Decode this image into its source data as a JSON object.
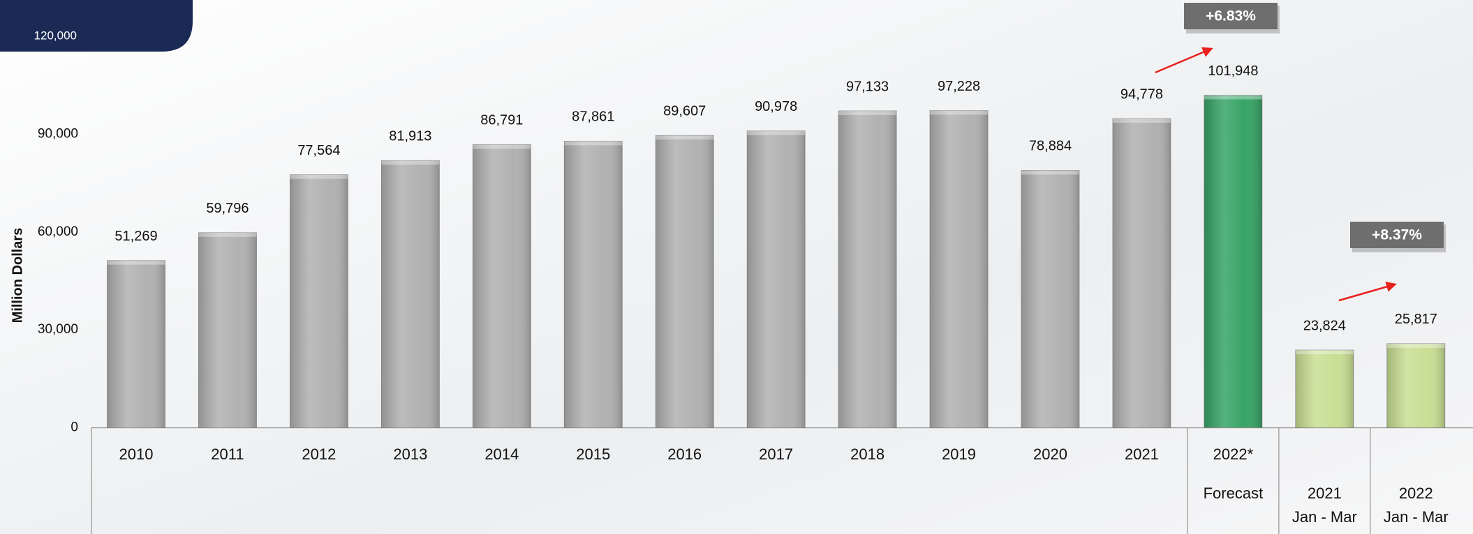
{
  "chart_data": {
    "type": "bar",
    "y_axis_label": "Million Dollars",
    "categories": [
      "2010",
      "2011",
      "2012",
      "2013",
      "2014",
      "2015",
      "2016",
      "2017",
      "2018",
      "2019",
      "2020",
      "2021",
      "2022*",
      "2021",
      "2022"
    ],
    "subcategories": [
      null,
      null,
      null,
      null,
      null,
      null,
      null,
      null,
      null,
      null,
      null,
      null,
      "Forecast",
      "Jan - Mar",
      "Jan - Mar"
    ],
    "values": [
      51269,
      59796,
      77564,
      81913,
      86791,
      87861,
      89607,
      90978,
      97133,
      97228,
      78884,
      94778,
      101948,
      23824,
      25817
    ],
    "value_labels": [
      "51,269",
      "59,796",
      "77,564",
      "81,913",
      "86,791",
      "87,861",
      "89,607",
      "90,978",
      "97,133",
      "97,228",
      "78,884",
      "94,778",
      "101,948",
      "23,824",
      "25,817"
    ],
    "colors": [
      "#b1b1b1",
      "#b1b1b1",
      "#b1b1b1",
      "#b1b1b1",
      "#b1b1b1",
      "#b1b1b1",
      "#b1b1b1",
      "#b1b1b1",
      "#b1b1b1",
      "#b1b1b1",
      "#b1b1b1",
      "#b1b1b1",
      "#37a466",
      "#c8df94",
      "#c8df94"
    ],
    "ylim": [
      0,
      120000
    ],
    "yticks": [
      0,
      {
        "value": 30000,
        "label": "30,000"
      },
      {
        "value": 60000,
        "label": "60,000"
      },
      {
        "value": 90000,
        "label": "90,000"
      },
      {
        "value": 120000,
        "label": "120,000"
      }
    ],
    "annotations": [
      "+6.83%",
      "+8.37%"
    ]
  }
}
